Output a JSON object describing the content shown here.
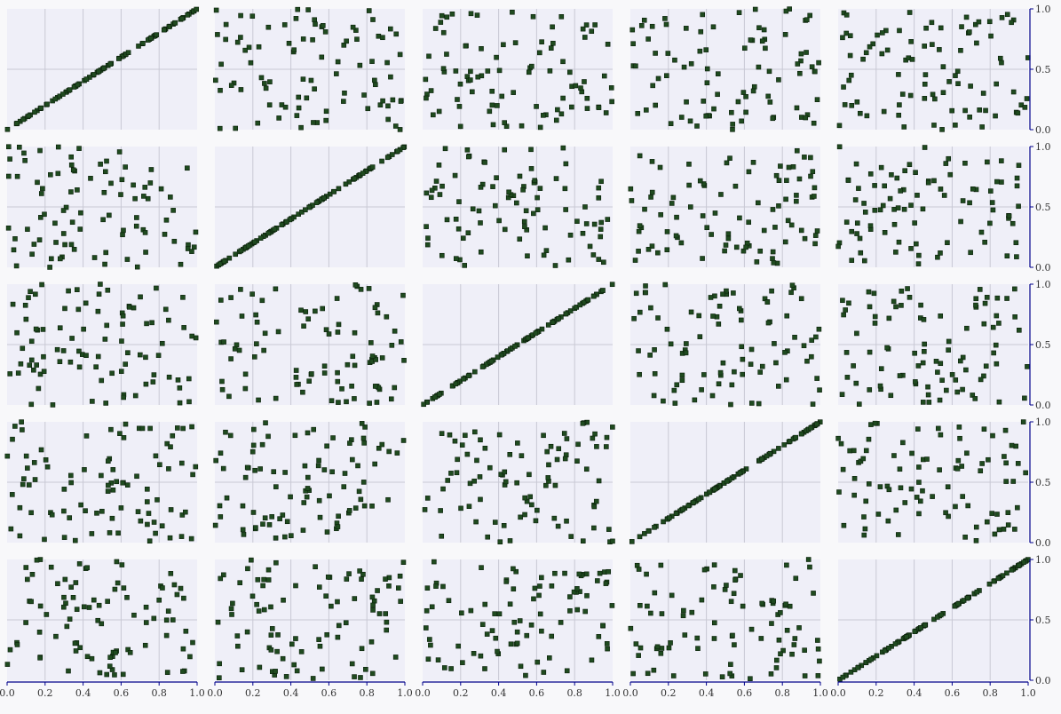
{
  "chart_data": {
    "type": "scatter",
    "layout": "scatter-matrix",
    "rows": 5,
    "cols": 5,
    "title": "",
    "xlim": [
      0,
      1
    ],
    "ylim": [
      0,
      1
    ],
    "x_ticks": [
      "0.0",
      "0.2",
      "0.4",
      "0.6",
      "0.8",
      "1.0"
    ],
    "y_ticks": [
      "0.0",
      "0.5",
      "1.0"
    ],
    "grid": true,
    "x_axis_position": "bottom",
    "y_axis_position": "right",
    "points_per_panel": 90,
    "random_seed": 7,
    "colors": {
      "panel_background": "#efeff8",
      "grid": "#c8c8d4",
      "marker": "#1f4a1f",
      "marker_edge": "#0a1f0a",
      "axis": "#00008b",
      "page_background": "#f8f8fa"
    },
    "marker": "square",
    "panels_note_hidden": true,
    "diagonal": "identity line (y = x)",
    "off_diagonal": "uniform random points in [0,1] x [0,1]"
  }
}
